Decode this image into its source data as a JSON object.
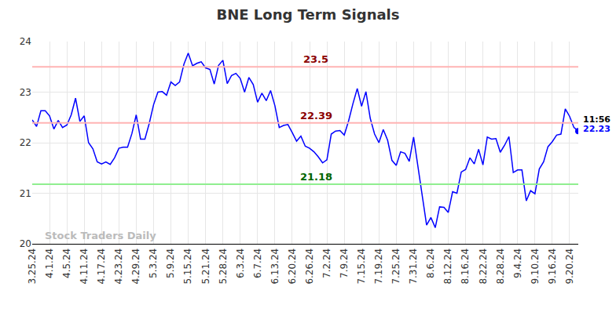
{
  "chart_data": {
    "type": "line",
    "title": "BNE Long Term Signals",
    "categories": [
      "3.25.24",
      null,
      null,
      null,
      "4.1.24",
      null,
      null,
      null,
      "4.5.24",
      null,
      null,
      null,
      "4.11.24",
      null,
      null,
      null,
      "4.17.24",
      null,
      null,
      null,
      "4.23.24",
      null,
      null,
      null,
      "4.29.24",
      null,
      null,
      null,
      "5.3.24",
      null,
      null,
      null,
      "5.9.24",
      null,
      null,
      null,
      "5.15.24",
      null,
      null,
      null,
      "5.21.24",
      null,
      null,
      null,
      "5.28.24",
      null,
      null,
      null,
      "6.3.24",
      null,
      null,
      null,
      "6.7.24",
      null,
      null,
      null,
      "6.13.24",
      null,
      null,
      null,
      "6.20.24",
      null,
      null,
      null,
      "6.26.24",
      null,
      null,
      null,
      "7.2.24",
      null,
      null,
      null,
      "7.9.24",
      null,
      null,
      null,
      "7.15.24",
      null,
      null,
      null,
      "7.19.24",
      null,
      null,
      null,
      "7.25.24",
      null,
      null,
      null,
      "7.31.24",
      null,
      null,
      null,
      "8.6.24",
      null,
      null,
      null,
      "8.12.24",
      null,
      null,
      null,
      "8.16.24",
      null,
      null,
      null,
      "8.22.24",
      null,
      null,
      null,
      "8.28.24",
      null,
      null,
      null,
      "9.4.24",
      null,
      null,
      null,
      "9.10.24",
      null,
      null,
      null,
      "9.16.24",
      null,
      null,
      null,
      "9.20.24",
      null,
      null
    ],
    "values": [
      22.45,
      22.32,
      22.63,
      22.63,
      22.53,
      22.27,
      22.44,
      22.3,
      22.35,
      22.55,
      22.88,
      22.42,
      22.53,
      22.0,
      21.88,
      21.62,
      21.58,
      21.62,
      21.57,
      21.7,
      21.89,
      21.91,
      21.91,
      22.18,
      22.55,
      22.07,
      22.07,
      22.38,
      22.75,
      23.0,
      23.01,
      22.94,
      23.2,
      23.13,
      23.2,
      23.55,
      23.77,
      23.52,
      23.57,
      23.6,
      23.48,
      23.45,
      23.16,
      23.53,
      23.63,
      23.17,
      23.33,
      23.37,
      23.27,
      23.0,
      23.29,
      23.15,
      22.8,
      22.98,
      22.83,
      23.03,
      22.73,
      22.3,
      22.34,
      22.36,
      22.2,
      22.03,
      22.13,
      21.93,
      21.89,
      21.82,
      21.72,
      21.6,
      21.66,
      22.17,
      22.23,
      22.24,
      22.15,
      22.43,
      22.77,
      23.07,
      22.72,
      23.01,
      22.48,
      22.17,
      22.0,
      22.26,
      22.05,
      21.65,
      21.55,
      21.82,
      21.79,
      21.63,
      22.11,
      21.55,
      20.95,
      20.37,
      20.52,
      20.32,
      20.73,
      20.72,
      20.62,
      21.03,
      21.0,
      21.42,
      21.47,
      21.7,
      21.58,
      21.87,
      21.56,
      22.11,
      22.07,
      22.08,
      21.81,
      21.95,
      22.12,
      21.41,
      21.46,
      21.46,
      20.85,
      21.05,
      20.99,
      21.48,
      21.62,
      21.92,
      22.02,
      22.15,
      22.17,
      22.67,
      22.52,
      22.3,
      22.23
    ],
    "color": "#0000ff",
    "ylim": [
      20,
      24
    ],
    "yticks": [
      20,
      21,
      22,
      23,
      24
    ],
    "grid": true,
    "hlines": [
      {
        "value": 23.5,
        "label": "23.5",
        "color": "#ffb3b3",
        "label_color": "#8b0000"
      },
      {
        "value": 22.39,
        "label": "22.39",
        "color": "#ffb3b3",
        "label_color": "#8b0000"
      },
      {
        "value": 21.18,
        "label": "21.18",
        "color": "#90ee90",
        "label_color": "#006400"
      }
    ],
    "end_label": {
      "time": "11:56",
      "value": "22.23",
      "value_color": "#0000ff"
    },
    "watermark": "Stock Traders Daily"
  }
}
